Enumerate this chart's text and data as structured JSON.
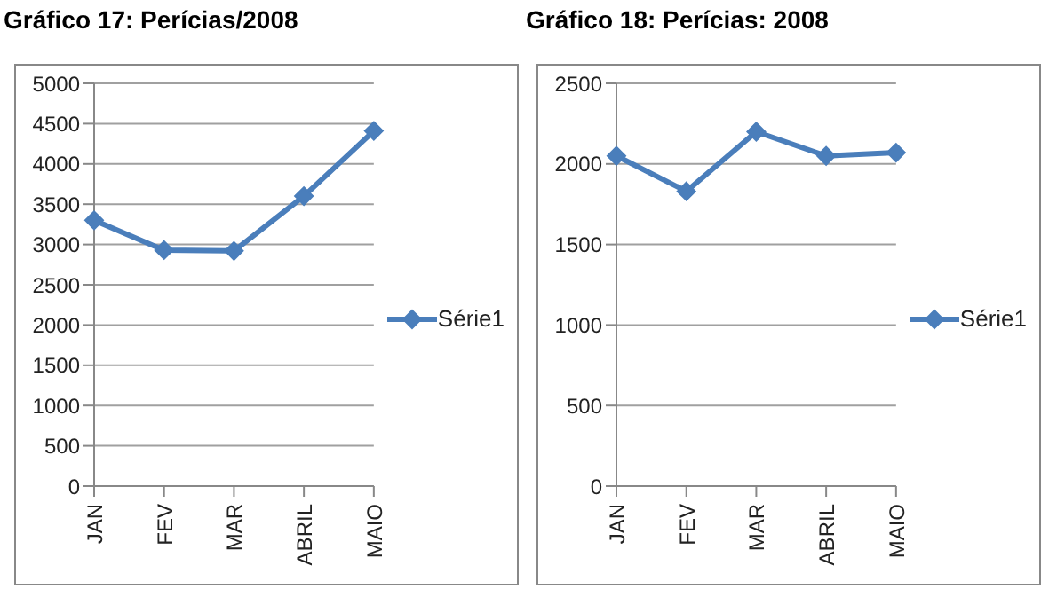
{
  "chart_data": [
    {
      "type": "line",
      "title": "Gráfico 17: Perícias/2008",
      "categories": [
        "JAN",
        "FEV",
        "MAR",
        "ABRIL",
        "MAIO"
      ],
      "series": [
        {
          "name": "Série1",
          "color": "#4a7ebb",
          "values": [
            3300,
            2930,
            2920,
            3600,
            4410
          ]
        }
      ],
      "ylim": [
        0,
        5000
      ],
      "yticks": [
        0,
        500,
        1000,
        1500,
        2000,
        2500,
        3000,
        3500,
        4000,
        4500,
        5000
      ],
      "grid": "y",
      "legend": "right",
      "marker": "diamond"
    },
    {
      "type": "line",
      "title": "Gráfico 18: Perícias: 2008",
      "categories": [
        "JAN",
        "FEV",
        "MAR",
        "ABRIL",
        "MAIO"
      ],
      "series": [
        {
          "name": "Série1",
          "color": "#4a7ebb",
          "values": [
            2050,
            1830,
            2200,
            2050,
            2070
          ]
        }
      ],
      "ylim": [
        0,
        2500
      ],
      "yticks": [
        0,
        500,
        1000,
        1500,
        2000,
        2500
      ],
      "grid": "y",
      "legend": "right",
      "marker": "diamond"
    }
  ]
}
